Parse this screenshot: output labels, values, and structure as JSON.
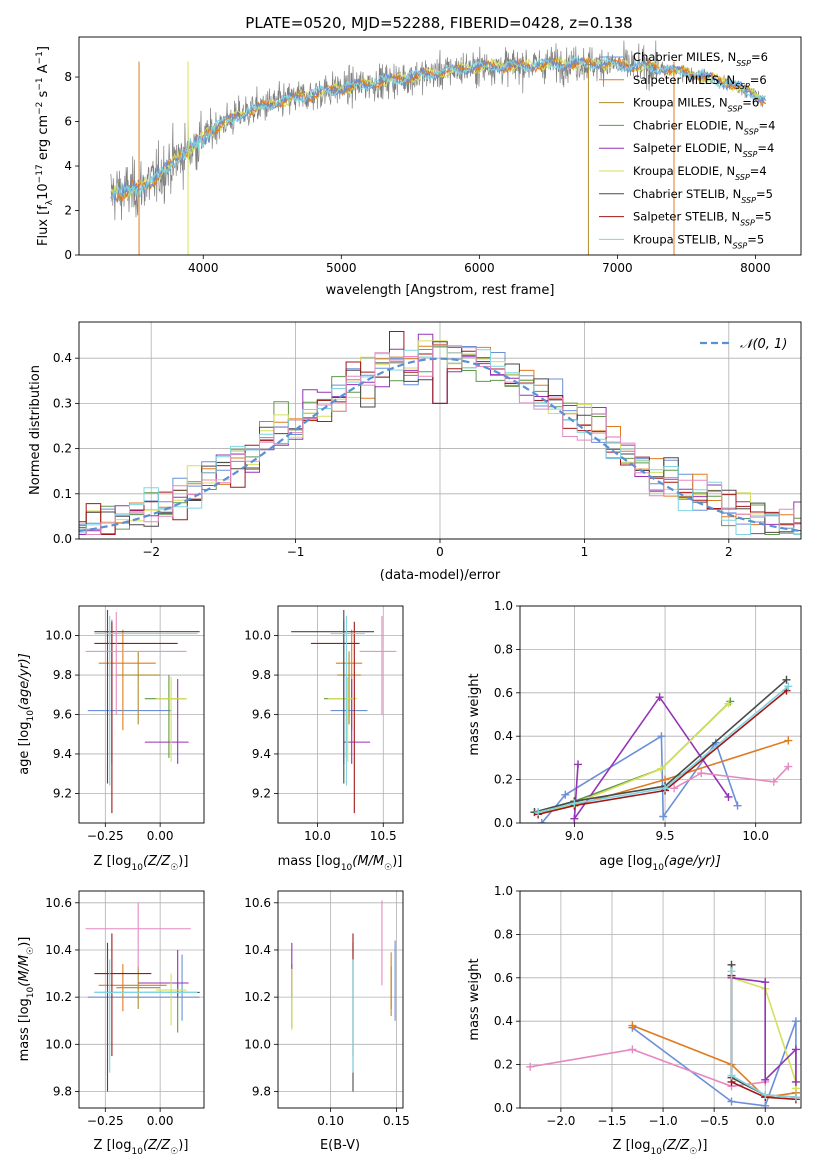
{
  "figure_title": "PLATE=0520, MJD=52288, FIBERID=0428, z=0.138",
  "colors": {
    "Chabrier MILES": "#6c8fd9",
    "Salpeter MILES": "#e07b22",
    "Kroupa MILES": "#b08a2a",
    "Chabrier ELODIE": "#5f9a4a",
    "Salpeter ELODIE": "#9533b5",
    "Kroupa ELODIE": "#d6e05a",
    "Chabrier STELIB": "#4a4a4a",
    "Salpeter STELIB": "#a01818",
    "Kroupa STELIB": "#7fd6e0",
    "pink": "#e58ac0",
    "lime": "#a6d83a",
    "data": "#808080",
    "normal": "#5b8fd6"
  },
  "chart_data": [
    {
      "id": "spectrum",
      "type": "line",
      "title": "PLATE=0520, MJD=52288, FIBERID=0428, z=0.138",
      "xlabel": "wavelength [Angstrom, rest frame]",
      "ylabel_main": "Flux [f",
      "ylabel_sub": "λ",
      "ylabel_rest": "10",
      "ylabel_exp1": "−17",
      "ylabel_mid": " erg cm",
      "ylabel_exp2": "−2",
      "ylabel_s": " s",
      "ylabel_exp3": "−1",
      "ylabel_A": " A",
      "ylabel_exp4": "−1",
      "ylabel_end": "]",
      "xlim": [
        3100,
        8330
      ],
      "ylim": [
        0,
        9.8
      ],
      "xticks": [
        4000,
        5000,
        6000,
        7000,
        8000
      ],
      "yticks": [
        0,
        2,
        4,
        6,
        8
      ],
      "legend": [
        {
          "name": "Chabrier MILES, N",
          "sub": "SSP",
          "tail": "=6"
        },
        {
          "name": "Salpeter MILES, N",
          "sub": "SSP",
          "tail": "=6"
        },
        {
          "name": "Kroupa MILES, N",
          "sub": "SSP",
          "tail": "=6"
        },
        {
          "name": "Chabrier ELODIE, N",
          "sub": "SSP",
          "tail": "=4"
        },
        {
          "name": "Salpeter ELODIE, N",
          "sub": "SSP",
          "tail": "=4"
        },
        {
          "name": "Kroupa ELODIE, N",
          "sub": "SSP",
          "tail": "=4"
        },
        {
          "name": "Chabrier STELIB, N",
          "sub": "SSP",
          "tail": "=5"
        },
        {
          "name": "Salpeter STELIB, N",
          "sub": "SSP",
          "tail": "=5"
        },
        {
          "name": "Kroupa STELIB, N",
          "sub": "SSP",
          "tail": "=5"
        }
      ],
      "continuum_x": [
        3350,
        3500,
        3650,
        3800,
        3950,
        4100,
        4300,
        4500,
        4700,
        4900,
        5100,
        5300,
        5500,
        5700,
        5900,
        6100,
        6300,
        6500,
        6700,
        6900,
        7100,
        7300,
        7500,
        7700,
        7900,
        8050
      ],
      "continuum_y": [
        2.8,
        2.9,
        3.4,
        4.3,
        5.0,
        5.8,
        6.4,
        6.8,
        7.1,
        7.4,
        7.6,
        7.8,
        8.0,
        8.2,
        8.4,
        8.5,
        8.5,
        8.6,
        8.6,
        8.6,
        8.5,
        8.4,
        8.2,
        7.9,
        7.5,
        7.0
      ]
    },
    {
      "id": "residuals",
      "type": "histogram",
      "xlabel": "(data-model)/error",
      "ylabel": "Normed distribution",
      "legend": "𝒩(0, 1)",
      "xlim": [
        -2.5,
        2.5
      ],
      "ylim": [
        0,
        0.48
      ],
      "xticks": [
        -2,
        -1,
        0,
        1,
        2
      ],
      "xtick_labels": [
        "−2",
        "−1",
        "0",
        "1",
        "2"
      ],
      "yticks": [
        0,
        0.1,
        0.2,
        0.3,
        0.4
      ],
      "ytick_labels": [
        "0.0",
        "0.1",
        "0.2",
        "0.3",
        "0.4"
      ],
      "bin_width": 0.1
    },
    {
      "id": "age_vs_Z",
      "type": "errorbar",
      "xlabel_pre": "Z [log",
      "xlabel_sub": "10",
      "xlabel_mid": "(Z/Z",
      "xlabel_sun": "☉",
      "xlabel_end": ")]",
      "ylabel_pre": "age  [log",
      "ylabel_sub": "10",
      "ylabel_end": "(age/yr)]",
      "xlim": [
        -0.37,
        0.2
      ],
      "ylim": [
        9.05,
        10.15
      ],
      "xticks": [
        -0.25,
        0.0
      ],
      "xtick_labels": [
        "−0.25",
        "0.00"
      ],
      "yticks": [
        9.2,
        9.4,
        9.6,
        9.8,
        10.0
      ],
      "ytick_labels": [
        "9.2",
        "9.4",
        "9.6",
        "9.8",
        "10.0"
      ],
      "points": [
        {
          "c": "Chabrier MILES",
          "x": -0.22,
          "xl": -0.33,
          "xh": 0.05,
          "y": 9.62,
          "yl": 9.35,
          "yh": 10.08
        },
        {
          "c": "Salpeter MILES",
          "x": -0.17,
          "xl": -0.28,
          "xh": -0.02,
          "y": 9.86,
          "yl": 9.52,
          "yh": 10.03
        },
        {
          "c": "Kroupa MILES",
          "x": -0.1,
          "xl": -0.2,
          "xh": 0.0,
          "y": 9.8,
          "yl": 9.55,
          "yh": 9.92
        },
        {
          "c": "Chabrier ELODIE",
          "x": 0.04,
          "xl": -0.07,
          "xh": 0.12,
          "y": 9.68,
          "yl": 9.38,
          "yh": 9.8
        },
        {
          "c": "Salpeter ELODIE",
          "x": 0.08,
          "xl": -0.07,
          "xh": 0.13,
          "y": 9.46,
          "yl": 9.35,
          "yh": 9.78
        },
        {
          "c": "Kroupa ELODIE",
          "x": 0.05,
          "xl": -0.02,
          "xh": 0.12,
          "y": 9.68,
          "yl": 9.36,
          "yh": 9.79
        },
        {
          "c": "Chabrier STELIB",
          "x": -0.24,
          "xl": -0.3,
          "xh": 0.18,
          "y": 10.02,
          "yl": 9.25,
          "yh": 10.13
        },
        {
          "c": "Salpeter STELIB",
          "x": -0.22,
          "xl": -0.3,
          "xh": 0.08,
          "y": 9.96,
          "yl": 9.1,
          "yh": 10.07
        },
        {
          "c": "Kroupa STELIB",
          "x": -0.23,
          "xl": -0.3,
          "xh": 0.17,
          "y": 10.01,
          "yl": 9.24,
          "yh": 10.1
        },
        {
          "c": "pink",
          "x": -0.2,
          "xl": -0.34,
          "xh": 0.12,
          "y": 9.92,
          "yl": 9.6,
          "yh": 10.12
        }
      ]
    },
    {
      "id": "age_vs_mass",
      "type": "errorbar",
      "xlabel_pre": "mass [log",
      "xlabel_sub": "10",
      "xlabel_mid": "(M/M",
      "xlabel_sun": "☉",
      "xlabel_end": ")]",
      "xlim": [
        9.7,
        10.65
      ],
      "ylim": [
        9.05,
        10.15
      ],
      "xticks": [
        10.0,
        10.5
      ],
      "xtick_labels": [
        "10.0",
        "10.5"
      ],
      "yticks": [
        9.2,
        9.4,
        9.6,
        9.8,
        10.0
      ],
      "ytick_labels": [
        "9.2",
        "9.4",
        "9.6",
        "9.8",
        "10.0"
      ],
      "points": [
        {
          "c": "Chabrier MILES",
          "x": 10.2,
          "xl": 10.1,
          "xh": 10.38,
          "y": 9.62,
          "yl": 9.35,
          "yh": 10.08
        },
        {
          "c": "Salpeter MILES",
          "x": 10.26,
          "xl": 10.14,
          "xh": 10.34,
          "y": 9.86,
          "yl": 9.52,
          "yh": 10.03
        },
        {
          "c": "Kroupa MILES",
          "x": 10.24,
          "xl": 10.15,
          "xh": 10.33,
          "y": 9.8,
          "yl": 9.55,
          "yh": 9.92
        },
        {
          "c": "Chabrier ELODIE",
          "x": 10.22,
          "xl": 10.05,
          "xh": 10.26,
          "y": 9.68,
          "yl": 9.38,
          "yh": 9.8
        },
        {
          "c": "Salpeter ELODIE",
          "x": 10.26,
          "xl": 10.2,
          "xh": 10.4,
          "y": 9.46,
          "yl": 9.35,
          "yh": 9.78
        },
        {
          "c": "Kroupa ELODIE",
          "x": 10.23,
          "xl": 10.08,
          "xh": 10.3,
          "y": 9.68,
          "yl": 9.36,
          "yh": 9.79
        },
        {
          "c": "Chabrier STELIB",
          "x": 10.2,
          "xl": 9.8,
          "xh": 10.43,
          "y": 10.02,
          "yl": 9.25,
          "yh": 10.13
        },
        {
          "c": "Salpeter STELIB",
          "x": 10.28,
          "xl": 9.95,
          "xh": 10.32,
          "y": 9.96,
          "yl": 9.1,
          "yh": 10.07
        },
        {
          "c": "Kroupa STELIB",
          "x": 10.22,
          "xl": 10.1,
          "xh": 10.36,
          "y": 10.01,
          "yl": 9.24,
          "yh": 10.1
        },
        {
          "c": "pink",
          "x": 10.49,
          "xl": 10.32,
          "xh": 10.6,
          "y": 9.92,
          "yl": 9.6,
          "yh": 10.1
        }
      ]
    },
    {
      "id": "weight_vs_age",
      "type": "line",
      "xlabel_pre": "age  [log",
      "xlabel_sub": "10",
      "xlabel_end": "(age/yr)]",
      "ylabel": "mass weight",
      "xlim": [
        8.7,
        10.25
      ],
      "ylim": [
        0,
        1.0
      ],
      "xticks": [
        9.0,
        9.5,
        10.0
      ],
      "xtick_labels": [
        "9.0",
        "9.5",
        "10.0"
      ],
      "yticks": [
        0,
        0.2,
        0.4,
        0.6,
        0.8,
        1.0
      ],
      "ytick_labels": [
        "0.0",
        "0.2",
        "0.4",
        "0.6",
        "0.8",
        "1.0"
      ],
      "series": [
        {
          "c": "Chabrier MILES",
          "x": [
            8.82,
            8.95,
            9.48,
            9.49,
            9.78,
            9.9
          ],
          "y": [
            0.0,
            0.13,
            0.4,
            0.03,
            0.37,
            0.08
          ]
        },
        {
          "c": "Salpeter MILES",
          "x": [
            8.8,
            9.0,
            9.5,
            10.18
          ],
          "y": [
            0.05,
            0.08,
            0.2,
            0.38
          ]
        },
        {
          "c": "Chabrier ELODIE",
          "x": [
            8.78,
            9.0,
            9.48,
            9.86
          ],
          "y": [
            0.05,
            0.1,
            0.25,
            0.56
          ]
        },
        {
          "c": "Salpeter ELODIE",
          "x": [
            9.02,
            9.0,
            9.47,
            9.85
          ],
          "y": [
            0.27,
            0.02,
            0.58,
            0.12
          ]
        },
        {
          "c": "Kroupa ELODIE",
          "x": [
            8.8,
            9.0,
            9.48,
            9.85
          ],
          "y": [
            0.04,
            0.09,
            0.25,
            0.55
          ]
        },
        {
          "c": "Chabrier STELIB",
          "x": [
            8.78,
            9.0,
            9.5,
            10.17
          ],
          "y": [
            0.05,
            0.1,
            0.17,
            0.66
          ]
        },
        {
          "c": "Salpeter STELIB",
          "x": [
            8.8,
            9.0,
            9.5,
            10.17
          ],
          "y": [
            0.04,
            0.08,
            0.15,
            0.61
          ]
        },
        {
          "c": "Kroupa STELIB",
          "x": [
            8.8,
            9.0,
            9.5,
            10.18
          ],
          "y": [
            0.05,
            0.09,
            0.16,
            0.63
          ]
        },
        {
          "c": "pink",
          "x": [
            9.55,
            9.7,
            10.1,
            10.18
          ],
          "y": [
            0.16,
            0.23,
            0.19,
            0.26
          ]
        }
      ]
    },
    {
      "id": "mass_vs_Z",
      "type": "errorbar",
      "xlabel_pre": "Z [log",
      "xlabel_sub": "10",
      "xlabel_mid": "(Z/Z",
      "xlabel_sun": "☉",
      "xlabel_end": ")]",
      "ylabel_pre": "mass [log",
      "ylabel_sub": "10",
      "ylabel_mid": "(M/M",
      "ylabel_sun": "☉",
      "ylabel_end": ")]",
      "xlim": [
        -0.37,
        0.2
      ],
      "ylim": [
        9.73,
        10.65
      ],
      "xticks": [
        -0.25,
        0.0
      ],
      "xtick_labels": [
        "−0.25",
        "0.00"
      ],
      "yticks": [
        9.8,
        10.0,
        10.2,
        10.4,
        10.6
      ],
      "ytick_labels": [
        "9.8",
        "10.0",
        "10.2",
        "10.4",
        "10.6"
      ],
      "points": [
        {
          "c": "Chabrier MILES",
          "x": 0.1,
          "xl": -0.33,
          "xh": 0.18,
          "y": 10.2,
          "yl": 10.1,
          "yh": 10.38
        },
        {
          "c": "Salpeter MILES",
          "x": -0.17,
          "xl": -0.28,
          "xh": 0.03,
          "y": 10.25,
          "yl": 10.14,
          "yh": 10.34
        },
        {
          "c": "Kroupa MILES",
          "x": -0.1,
          "xl": -0.2,
          "xh": 0.0,
          "y": 10.24,
          "yl": 10.15,
          "yh": 10.33
        },
        {
          "c": "Chabrier ELODIE",
          "x": 0.08,
          "xl": -0.07,
          "xh": 0.13,
          "y": 10.22,
          "yl": 10.05,
          "yh": 10.26
        },
        {
          "c": "Salpeter ELODIE",
          "x": 0.08,
          "xl": -0.1,
          "xh": 0.13,
          "y": 10.26,
          "yl": 10.2,
          "yh": 10.4
        },
        {
          "c": "Kroupa ELODIE",
          "x": 0.05,
          "xl": -0.02,
          "xh": 0.12,
          "y": 10.23,
          "yl": 10.08,
          "yh": 10.3
        },
        {
          "c": "Chabrier STELIB",
          "x": -0.24,
          "xl": -0.3,
          "xh": 0.18,
          "y": 10.22,
          "yl": 9.8,
          "yh": 10.43
        },
        {
          "c": "Salpeter STELIB",
          "x": -0.22,
          "xl": -0.3,
          "xh": -0.04,
          "y": 10.3,
          "yl": 9.95,
          "yh": 10.47
        },
        {
          "c": "Kroupa STELIB",
          "x": -0.23,
          "xl": -0.3,
          "xh": 0.17,
          "y": 10.22,
          "yl": 9.88,
          "yh": 10.36
        },
        {
          "c": "pink",
          "x": -0.1,
          "xl": -0.34,
          "xh": 0.14,
          "y": 10.49,
          "yl": 10.32,
          "yh": 10.6
        }
      ]
    },
    {
      "id": "mass_vs_EBV",
      "type": "errorbar",
      "xlabel": "E(B-V)",
      "xlim": [
        0.06,
        0.155
      ],
      "ylim": [
        9.73,
        10.65
      ],
      "xticks": [
        0.1,
        0.15
      ],
      "xtick_labels": [
        "0.10",
        "0.15"
      ],
      "yticks": [
        9.8,
        10.0,
        10.2,
        10.4,
        10.6
      ],
      "ytick_labels": [
        "9.8",
        "10.0",
        "10.2",
        "10.4",
        "10.6"
      ],
      "points": [
        {
          "c": "Chabrier MILES",
          "x": 0.149,
          "y": 10.2,
          "yl": 10.1,
          "yh": 10.44
        },
        {
          "c": "Salpeter MILES",
          "x": 0.146,
          "y": 10.25,
          "yl": 10.12,
          "yh": 10.39
        },
        {
          "c": "Kroupa MILES",
          "x": 0.146,
          "y": 10.24,
          "yl": 10.15,
          "yh": 10.33
        },
        {
          "c": "Chabrier ELODIE",
          "x": 0.0705,
          "y": 10.22,
          "yl": 10.07,
          "yh": 10.34
        },
        {
          "c": "Salpeter ELODIE",
          "x": 0.0705,
          "y": 10.26,
          "yl": 10.2,
          "yh": 10.43
        },
        {
          "c": "Kroupa ELODIE",
          "x": 0.0705,
          "y": 10.23,
          "yl": 10.06,
          "yh": 10.32
        },
        {
          "c": "Chabrier STELIB",
          "x": 0.117,
          "y": 10.22,
          "yl": 9.8,
          "yh": 10.43
        },
        {
          "c": "Salpeter STELIB",
          "x": 0.117,
          "y": 10.3,
          "yl": 9.95,
          "yh": 10.47
        },
        {
          "c": "Kroupa STELIB",
          "x": 0.117,
          "y": 10.22,
          "yl": 9.88,
          "yh": 10.36
        },
        {
          "c": "pink",
          "x": 0.139,
          "y": 10.49,
          "yl": 10.25,
          "yh": 10.61
        }
      ]
    },
    {
      "id": "weight_vs_Z",
      "type": "line",
      "xlabel_pre": "Z [log",
      "xlabel_sub": "10",
      "xlabel_mid": "(Z/Z",
      "xlabel_sun": "☉",
      "xlabel_end": ")]",
      "ylabel": "mass weight",
      "xlim": [
        -2.4,
        0.35
      ],
      "ylim": [
        0,
        1.0
      ],
      "xticks": [
        -2.0,
        -1.5,
        -1.0,
        -0.5,
        0.0
      ],
      "xtick_labels": [
        "−2.0",
        "−1.5",
        "−1.0",
        "−0.5",
        "0.0"
      ],
      "yticks": [
        0,
        0.2,
        0.4,
        0.6,
        0.8,
        1.0
      ],
      "ytick_labels": [
        "0.0",
        "0.2",
        "0.4",
        "0.6",
        "0.8",
        "1.0"
      ],
      "series": [
        {
          "c": "Chabrier MILES",
          "x": [
            -1.3,
            -0.33,
            0.0,
            0.3,
            0.3
          ],
          "y": [
            0.37,
            0.03,
            0.01,
            0.4,
            0.07
          ]
        },
        {
          "c": "Salpeter MILES",
          "x": [
            -1.3,
            -0.33,
            0.0,
            0.3
          ],
          "y": [
            0.38,
            0.2,
            0.05,
            0.07
          ]
        },
        {
          "c": "pink",
          "x": [
            -2.3,
            -1.3,
            -0.33,
            0.0
          ],
          "y": [
            0.19,
            0.27,
            0.1,
            0.12
          ]
        },
        {
          "c": "Kroupa ELODIE",
          "x": [
            -0.33,
            0.0,
            0.3,
            0.3
          ],
          "y": [
            0.6,
            0.55,
            0.12,
            0.09
          ]
        },
        {
          "c": "Salpeter ELODIE",
          "x": [
            -0.33,
            0.0,
            0.0,
            0.3,
            0.3
          ],
          "y": [
            0.6,
            0.58,
            0.13,
            0.27,
            0.12
          ]
        },
        {
          "c": "Chabrier STELIB",
          "x": [
            -0.33,
            -0.33,
            0.0,
            0.3
          ],
          "y": [
            0.66,
            0.14,
            0.06,
            0.05
          ]
        },
        {
          "c": "Salpeter STELIB",
          "x": [
            -0.33,
            -0.33,
            0.0,
            0.3
          ],
          "y": [
            0.61,
            0.12,
            0.05,
            0.04
          ]
        },
        {
          "c": "Kroupa STELIB",
          "x": [
            -0.33,
            -0.33,
            0.0,
            0.3
          ],
          "y": [
            0.63,
            0.15,
            0.06,
            0.05
          ]
        }
      ]
    }
  ]
}
